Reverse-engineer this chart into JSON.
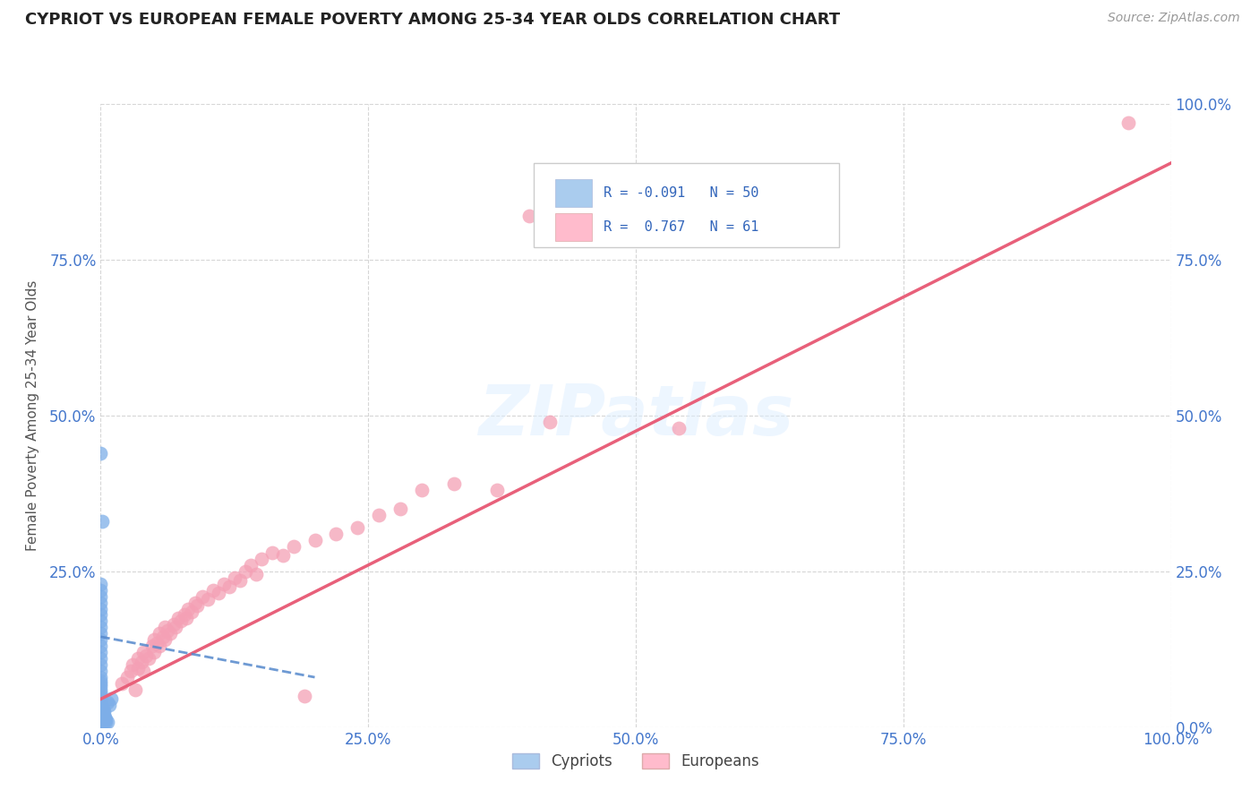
{
  "title": "CYPRIOT VS EUROPEAN FEMALE POVERTY AMONG 25-34 YEAR OLDS CORRELATION CHART",
  "source": "Source: ZipAtlas.com",
  "ylabel": "Female Poverty Among 25-34 Year Olds",
  "xlabel": "",
  "cypriot_color": "#7daee8",
  "european_color": "#f4a0b5",
  "trend_cypriot_color": "#5588cc",
  "trend_european_color": "#e8607a",
  "background_color": "#ffffff",
  "grid_color": "#cccccc",
  "watermark": "ZIPatlas",
  "xlim": [
    0.0,
    1.0
  ],
  "ylim": [
    0.0,
    1.0
  ],
  "xtick_labels": [
    "0.0%",
    "25.0%",
    "50.0%",
    "75.0%",
    "100.0%"
  ],
  "xtick_values": [
    0.0,
    0.25,
    0.5,
    0.75,
    1.0
  ],
  "left_ytick_labels": [
    "",
    "25.0%",
    "50.0%",
    "75.0%",
    ""
  ],
  "left_ytick_values": [
    0.0,
    0.25,
    0.5,
    0.75,
    1.0
  ],
  "right_ytick_labels": [
    "100.0%",
    "75.0%",
    "50.0%",
    "25.0%",
    "0.0%"
  ],
  "right_ytick_values": [
    1.0,
    0.75,
    0.5,
    0.25,
    0.0
  ],
  "cypriot_points": [
    [
      0.0,
      0.0
    ],
    [
      0.0,
      0.005
    ],
    [
      0.0,
      0.01
    ],
    [
      0.0,
      0.015
    ],
    [
      0.0,
      0.02
    ],
    [
      0.0,
      0.025
    ],
    [
      0.0,
      0.03
    ],
    [
      0.0,
      0.035
    ],
    [
      0.0,
      0.04
    ],
    [
      0.0,
      0.045
    ],
    [
      0.0,
      0.05
    ],
    [
      0.0,
      0.055
    ],
    [
      0.0,
      0.06
    ],
    [
      0.0,
      0.065
    ],
    [
      0.0,
      0.07
    ],
    [
      0.0,
      0.075
    ],
    [
      0.0,
      0.08
    ],
    [
      0.0,
      0.09
    ],
    [
      0.0,
      0.1
    ],
    [
      0.0,
      0.11
    ],
    [
      0.0,
      0.12
    ],
    [
      0.0,
      0.13
    ],
    [
      0.0,
      0.14
    ],
    [
      0.0,
      0.15
    ],
    [
      0.0,
      0.16
    ],
    [
      0.0,
      0.17
    ],
    [
      0.0,
      0.18
    ],
    [
      0.0,
      0.19
    ],
    [
      0.0,
      0.2
    ],
    [
      0.0,
      0.21
    ],
    [
      0.0,
      0.22
    ],
    [
      0.0,
      0.23
    ],
    [
      0.002,
      0.015
    ],
    [
      0.002,
      0.02
    ],
    [
      0.002,
      0.025
    ],
    [
      0.002,
      0.03
    ],
    [
      0.003,
      0.01
    ],
    [
      0.003,
      0.015
    ],
    [
      0.003,
      0.02
    ],
    [
      0.003,
      0.025
    ],
    [
      0.004,
      0.01
    ],
    [
      0.004,
      0.015
    ],
    [
      0.005,
      0.008
    ],
    [
      0.005,
      0.012
    ],
    [
      0.006,
      0.008
    ],
    [
      0.006,
      0.04
    ],
    [
      0.008,
      0.035
    ],
    [
      0.01,
      0.045
    ],
    [
      0.0,
      0.44
    ],
    [
      0.001,
      0.33
    ]
  ],
  "european_points": [
    [
      0.02,
      0.07
    ],
    [
      0.025,
      0.08
    ],
    [
      0.028,
      0.09
    ],
    [
      0.03,
      0.1
    ],
    [
      0.032,
      0.06
    ],
    [
      0.035,
      0.095
    ],
    [
      0.035,
      0.11
    ],
    [
      0.038,
      0.105
    ],
    [
      0.04,
      0.09
    ],
    [
      0.04,
      0.12
    ],
    [
      0.042,
      0.115
    ],
    [
      0.045,
      0.11
    ],
    [
      0.048,
      0.13
    ],
    [
      0.05,
      0.12
    ],
    [
      0.05,
      0.14
    ],
    [
      0.052,
      0.135
    ],
    [
      0.055,
      0.13
    ],
    [
      0.055,
      0.15
    ],
    [
      0.058,
      0.145
    ],
    [
      0.06,
      0.14
    ],
    [
      0.06,
      0.16
    ],
    [
      0.062,
      0.155
    ],
    [
      0.065,
      0.15
    ],
    [
      0.068,
      0.165
    ],
    [
      0.07,
      0.16
    ],
    [
      0.072,
      0.175
    ],
    [
      0.075,
      0.17
    ],
    [
      0.078,
      0.18
    ],
    [
      0.08,
      0.175
    ],
    [
      0.082,
      0.19
    ],
    [
      0.085,
      0.185
    ],
    [
      0.088,
      0.2
    ],
    [
      0.09,
      0.195
    ],
    [
      0.095,
      0.21
    ],
    [
      0.1,
      0.205
    ],
    [
      0.105,
      0.22
    ],
    [
      0.11,
      0.215
    ],
    [
      0.115,
      0.23
    ],
    [
      0.12,
      0.225
    ],
    [
      0.125,
      0.24
    ],
    [
      0.13,
      0.235
    ],
    [
      0.135,
      0.25
    ],
    [
      0.14,
      0.26
    ],
    [
      0.145,
      0.245
    ],
    [
      0.15,
      0.27
    ],
    [
      0.16,
      0.28
    ],
    [
      0.17,
      0.275
    ],
    [
      0.18,
      0.29
    ],
    [
      0.19,
      0.05
    ],
    [
      0.2,
      0.3
    ],
    [
      0.22,
      0.31
    ],
    [
      0.24,
      0.32
    ],
    [
      0.26,
      0.34
    ],
    [
      0.28,
      0.35
    ],
    [
      0.3,
      0.38
    ],
    [
      0.33,
      0.39
    ],
    [
      0.37,
      0.38
    ],
    [
      0.42,
      0.49
    ],
    [
      0.54,
      0.48
    ],
    [
      0.96,
      0.97
    ],
    [
      0.4,
      0.82
    ]
  ],
  "eu_trend_x": [
    0.0,
    1.0
  ],
  "eu_trend_y": [
    0.045,
    0.905
  ],
  "cy_trend_x": [
    0.0,
    0.2
  ],
  "cy_trend_y": [
    0.145,
    0.08
  ]
}
